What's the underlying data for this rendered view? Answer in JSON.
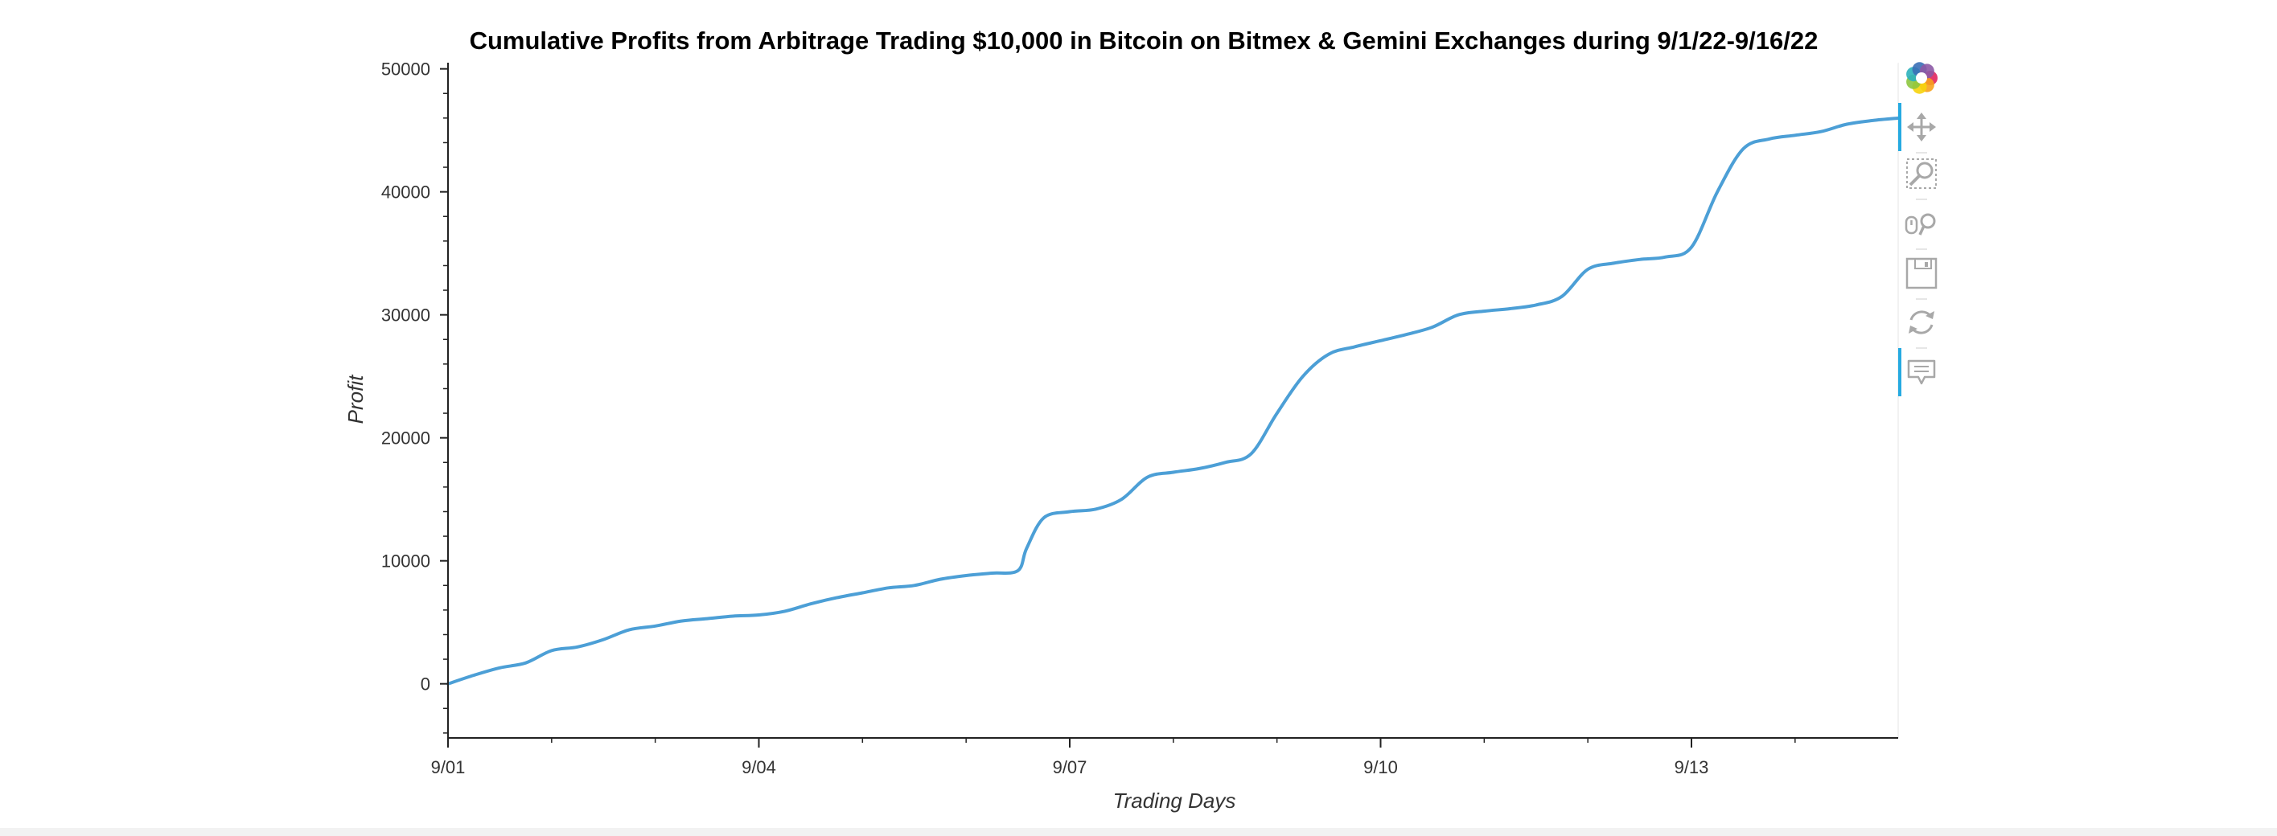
{
  "chart_data": {
    "type": "line",
    "title": "Cumulative Profits from Arbitrage Trading $10,000 in Bitcoin on Bitmex & Gemini Exchanges during 9/1/22-9/16/22",
    "xlabel": "Trading Days",
    "ylabel": "Profit",
    "x_ticks": [
      "9/01",
      "9/04",
      "9/07",
      "9/10",
      "9/13"
    ],
    "y_ticks": [
      "0",
      "10000",
      "20000",
      "30000",
      "40000",
      "50000"
    ],
    "ylim": [
      -4400,
      50500
    ],
    "xlim": [
      "2022-09-01",
      "2022-09-15"
    ],
    "grid": false,
    "series_color": "#4c9fd6",
    "series": [
      {
        "x": [
          "2022-09-01",
          "2022-09-01 06:00",
          "2022-09-01 12:00",
          "2022-09-01 18:00",
          "2022-09-02",
          "2022-09-02 06:00",
          "2022-09-02 12:00",
          "2022-09-02 18:00",
          "2022-09-03",
          "2022-09-03 06:00",
          "2022-09-03 12:00",
          "2022-09-03 18:00",
          "2022-09-04",
          "2022-09-04 06:00",
          "2022-09-04 12:00",
          "2022-09-04 18:00",
          "2022-09-05",
          "2022-09-05 06:00",
          "2022-09-05 12:00",
          "2022-09-05 18:00",
          "2022-09-06",
          "2022-09-06 06:00",
          "2022-09-06 12:00",
          "2022-09-06 14:00",
          "2022-09-06 18:00",
          "2022-09-07",
          "2022-09-07 06:00",
          "2022-09-07 12:00",
          "2022-09-07 18:00",
          "2022-09-08",
          "2022-09-08 06:00",
          "2022-09-08 12:00",
          "2022-09-08 18:00",
          "2022-09-09",
          "2022-09-09 06:00",
          "2022-09-09 12:00",
          "2022-09-09 18:00",
          "2022-09-10",
          "2022-09-10 06:00",
          "2022-09-10 12:00",
          "2022-09-10 18:00",
          "2022-09-11",
          "2022-09-11 06:00",
          "2022-09-11 12:00",
          "2022-09-11 18:00",
          "2022-09-12",
          "2022-09-12 06:00",
          "2022-09-12 12:00",
          "2022-09-12 18:00",
          "2022-09-13",
          "2022-09-13 06:00",
          "2022-09-13 12:00",
          "2022-09-13 18:00",
          "2022-09-14",
          "2022-09-14 06:00",
          "2022-09-14 12:00",
          "2022-09-14 18:00",
          "2022-09-15"
        ],
        "values": [
          0,
          700,
          1300,
          1700,
          2700,
          3000,
          3600,
          4400,
          4700,
          5100,
          5300,
          5500,
          5600,
          5900,
          6500,
          7000,
          7400,
          7800,
          8000,
          8500,
          8800,
          9000,
          9200,
          11000,
          13500,
          14000,
          14200,
          15000,
          16800,
          17200,
          17500,
          18000,
          18700,
          22000,
          25000,
          26800,
          27400,
          27900,
          28400,
          29000,
          30000,
          30300,
          30500,
          30800,
          31500,
          33700,
          34200,
          34500,
          34700,
          35500,
          40000,
          43500,
          44300,
          44600,
          44900,
          45500,
          45800,
          46000
        ]
      }
    ]
  },
  "toolbar": {
    "tools": [
      {
        "icon": "bokeh-logo-icon",
        "active": false
      },
      {
        "icon": "pan-icon",
        "active": true
      },
      {
        "icon": "box-zoom-icon",
        "active": false
      },
      {
        "icon": "wheel-zoom-icon",
        "active": false
      },
      {
        "icon": "save-icon",
        "active": false
      },
      {
        "icon": "reset-icon",
        "active": false
      },
      {
        "icon": "hover-icon",
        "active": true
      }
    ],
    "accent_color": "#26aae1",
    "icon_color": "#a8a8a8"
  }
}
